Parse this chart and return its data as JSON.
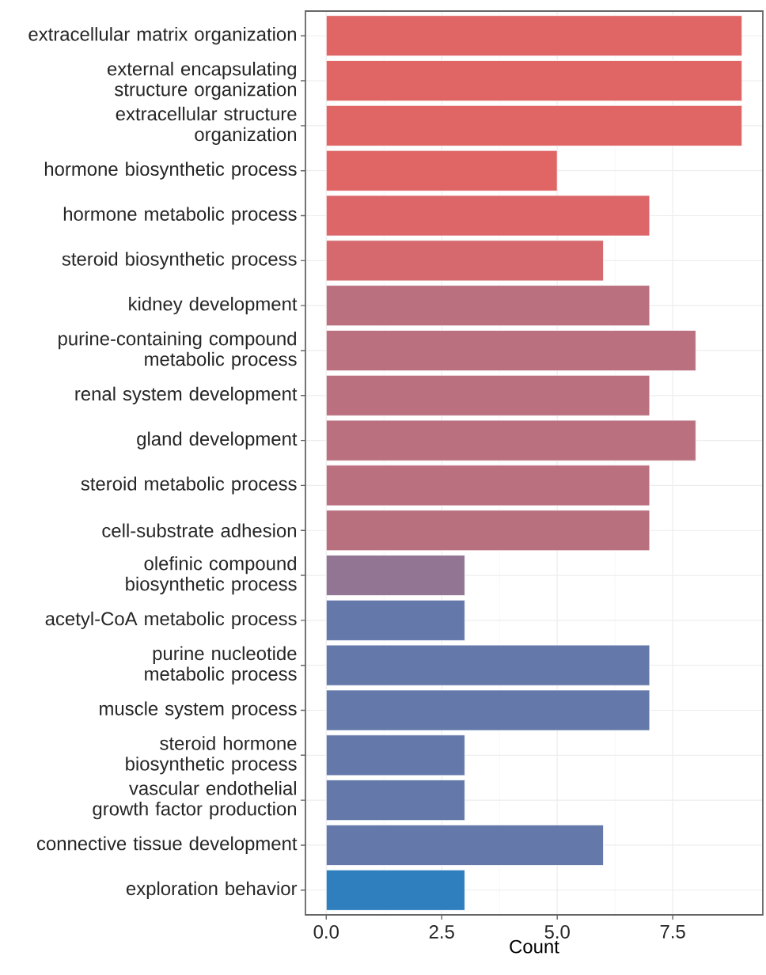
{
  "chart_data": {
    "type": "bar",
    "orientation": "horizontal",
    "xlabel": "Count",
    "categories": [
      "extracellular matrix organization",
      "external encapsulating structure organization",
      "extracellular structure organization",
      "hormone biosynthetic process",
      "hormone metabolic process",
      "steroid biosynthetic process",
      "kidney development",
      "purine-containing compound metabolic process",
      "renal system development",
      "gland development",
      "steroid metabolic process",
      "cell-substrate adhesion",
      "olefinic compound biosynthetic process",
      "acetyl-CoA metabolic process",
      "purine nucleotide metabolic process",
      "muscle system process",
      "steroid hormone biosynthetic process",
      "vascular endothelial growth factor production",
      "connective tissue development",
      "exploration behavior"
    ],
    "values": [
      9,
      9,
      9,
      5,
      7,
      6,
      7,
      8,
      7,
      8,
      7,
      7,
      3,
      3,
      7,
      7,
      3,
      3,
      6,
      3
    ],
    "colors": [
      "#e06666",
      "#e06666",
      "#e06666",
      "#e06666",
      "#dd6669",
      "#d5696d",
      "#ba707f",
      "#ba707f",
      "#ba707f",
      "#ba707f",
      "#ba707f",
      "#b8707f",
      "#917593",
      "#6479aa",
      "#6479aa",
      "#6479aa",
      "#6479aa",
      "#6479aa",
      "#6479aa",
      "#2f7fbf"
    ],
    "xlim": [
      -0.45,
      9.45
    ],
    "xticks": [
      {
        "value": 0,
        "label": "0.0"
      },
      2.5,
      {
        "value": 5,
        "label": "5.0"
      },
      7.5
    ],
    "grid": true
  }
}
